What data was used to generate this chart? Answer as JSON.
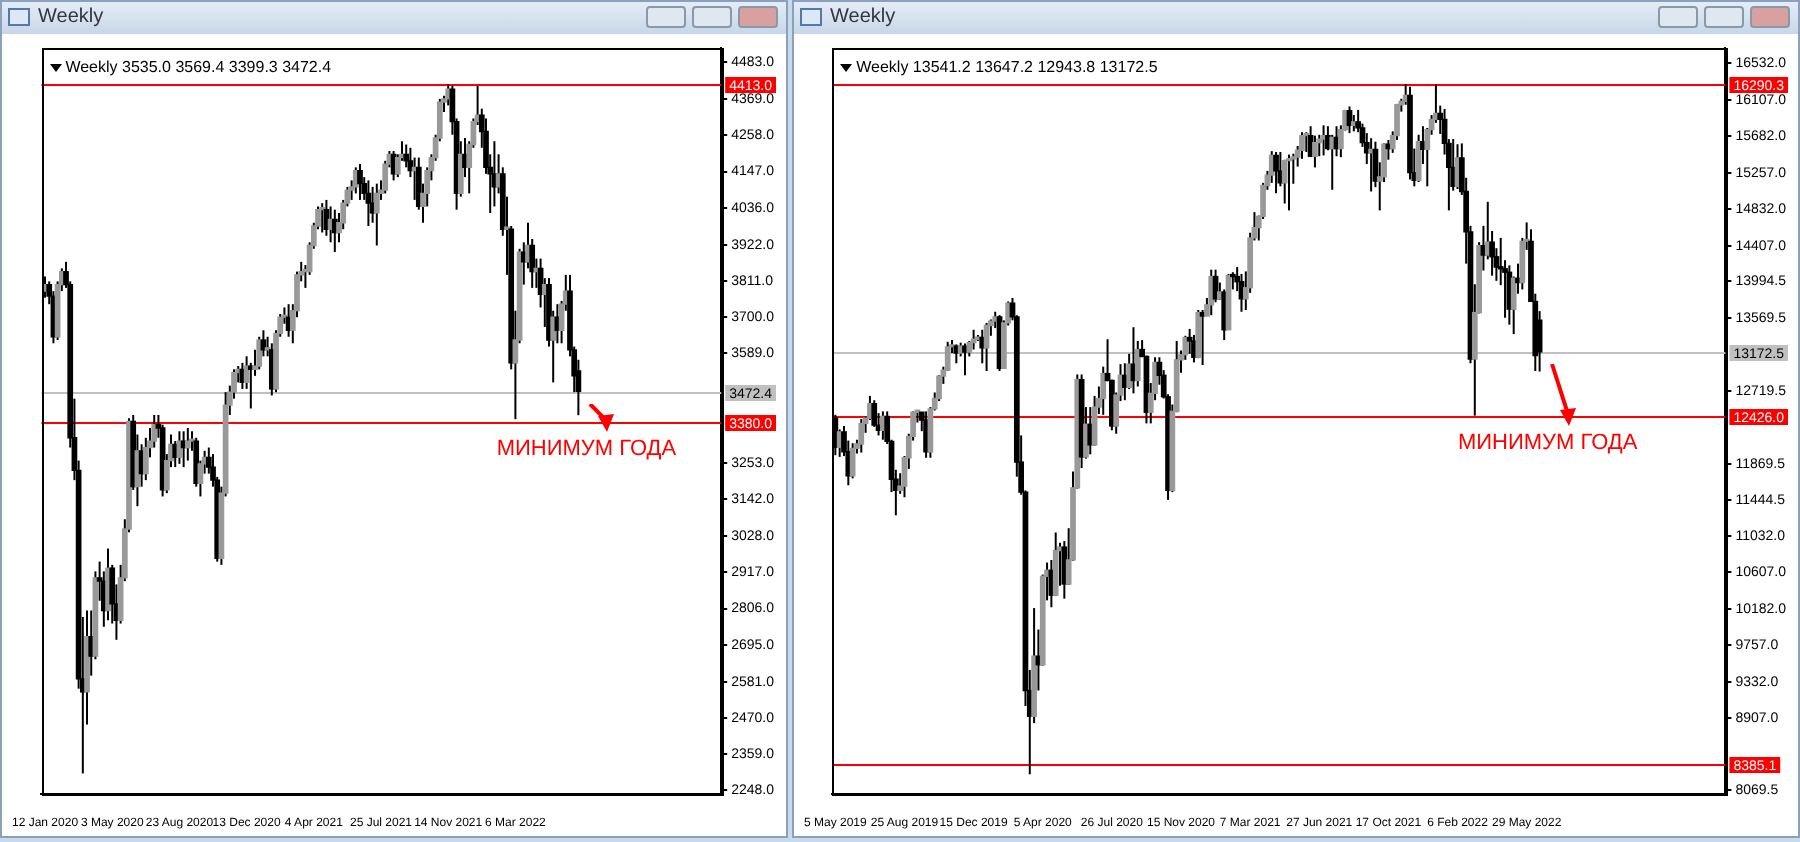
{
  "chart_data": [
    {
      "type": "candlestick",
      "title": "Weekly",
      "subtitle": "Weekly 3535.0 3569.4 3399.3 3472.4",
      "grid": false,
      "x": [
        "2020-01-12",
        "2020-01-19",
        "2020-01-26",
        "2020-02-02",
        "2020-02-09",
        "2020-02-16",
        "2020-02-23",
        "2020-03-01",
        "2020-03-08",
        "2020-03-15",
        "2020-03-22",
        "2020-03-29",
        "2020-04-05",
        "2020-04-12",
        "2020-04-19",
        "2020-04-26",
        "2020-05-03",
        "2020-05-10",
        "2020-05-17",
        "2020-05-24",
        "2020-05-31",
        "2020-06-07",
        "2020-06-14",
        "2020-06-21",
        "2020-06-28",
        "2020-07-05",
        "2020-07-12",
        "2020-07-19",
        "2020-07-26",
        "2020-08-02",
        "2020-08-09",
        "2020-08-16",
        "2020-08-23",
        "2020-08-30",
        "2020-09-06",
        "2020-09-13",
        "2020-09-20",
        "2020-09-27",
        "2020-10-04",
        "2020-10-11",
        "2020-10-18",
        "2020-10-25",
        "2020-11-01",
        "2020-11-08",
        "2020-11-15",
        "2020-11-22",
        "2020-11-29",
        "2020-12-06",
        "2020-12-13",
        "2020-12-20",
        "2020-12-27",
        "2021-01-03",
        "2021-01-10",
        "2021-01-17",
        "2021-01-24",
        "2021-01-31",
        "2021-02-07",
        "2021-02-14",
        "2021-02-21",
        "2021-02-28",
        "2021-03-07",
        "2021-03-14",
        "2021-03-21",
        "2021-03-28",
        "2021-04-04",
        "2021-04-11",
        "2021-04-18",
        "2021-04-25",
        "2021-05-02",
        "2021-05-09",
        "2021-05-16",
        "2021-05-23",
        "2021-05-30",
        "2021-06-06",
        "2021-06-13",
        "2021-06-20",
        "2021-06-27",
        "2021-07-04",
        "2021-07-11",
        "2021-07-18",
        "2021-07-25",
        "2021-08-01",
        "2021-08-08",
        "2021-08-15",
        "2021-08-22",
        "2021-08-29",
        "2021-09-05",
        "2021-09-12",
        "2021-09-19",
        "2021-09-26",
        "2021-10-03",
        "2021-10-10",
        "2021-10-17",
        "2021-10-24",
        "2021-10-31",
        "2021-11-07",
        "2021-11-14",
        "2021-11-21",
        "2021-11-28",
        "2021-12-05",
        "2021-12-12",
        "2021-12-19",
        "2021-12-26",
        "2022-01-02",
        "2022-01-09",
        "2022-01-16",
        "2022-01-23",
        "2022-01-30",
        "2022-02-06",
        "2022-02-13",
        "2022-02-20",
        "2022-02-27",
        "2022-03-06",
        "2022-03-13",
        "2022-03-20",
        "2022-03-27",
        "2022-04-03",
        "2022-04-10",
        "2022-04-17",
        "2022-04-24",
        "2022-05-01",
        "2022-05-08",
        "2022-05-15",
        "2022-05-22",
        "2022-05-29",
        "2022-06-05",
        "2022-06-12",
        "2022-06-19"
      ],
      "xlim": [
        "2020-01-06",
        "2023-02-12"
      ],
      "xticks": [
        {
          "value": "2020-01-12",
          "label": "12 Jan 2020"
        },
        {
          "value": "2020-05-03",
          "label": "3 May 2020"
        },
        {
          "value": "2020-08-23",
          "label": "23 Aug 2020"
        },
        {
          "value": "2020-12-13",
          "label": "13 Dec 2020"
        },
        {
          "value": "2021-04-04",
          "label": "4 Apr 2021"
        },
        {
          "value": "2021-07-25",
          "label": "25 Jul 2021"
        },
        {
          "value": "2021-11-14",
          "label": "14 Nov 2021"
        },
        {
          "value": "2022-03-06",
          "label": "6 Mar 2022"
        }
      ],
      "ohlc": [
        [
          3780,
          3825,
          3760,
          3800
        ],
        [
          3800,
          3810,
          3740,
          3765
        ],
        [
          3765,
          3780,
          3620,
          3640
        ],
        [
          3640,
          3810,
          3630,
          3800
        ],
        [
          3800,
          3850,
          3780,
          3840
        ],
        [
          3840,
          3870,
          3790,
          3800
        ],
        [
          3800,
          3810,
          3300,
          3330
        ],
        [
          3330,
          3450,
          3200,
          3230
        ],
        [
          3230,
          3260,
          2560,
          2590
        ],
        [
          2590,
          2780,
          2300,
          2550
        ],
        [
          2550,
          2800,
          2450,
          2720
        ],
        [
          2720,
          2800,
          2600,
          2660
        ],
        [
          2660,
          2920,
          2650,
          2900
        ],
        [
          2900,
          2950,
          2830,
          2890
        ],
        [
          2890,
          2920,
          2750,
          2800
        ],
        [
          2800,
          2990,
          2770,
          2930
        ],
        [
          2930,
          2940,
          2760,
          2820
        ],
        [
          2820,
          2880,
          2710,
          2770
        ],
        [
          2770,
          2940,
          2760,
          2900
        ],
        [
          2900,
          3080,
          2890,
          3050
        ],
        [
          3050,
          3390,
          3040,
          3380
        ],
        [
          3380,
          3400,
          3170,
          3180
        ],
        [
          3180,
          3340,
          3120,
          3290
        ],
        [
          3290,
          3310,
          3180,
          3220
        ],
        [
          3220,
          3330,
          3200,
          3300
        ],
        [
          3300,
          3360,
          3270,
          3320
        ],
        [
          3320,
          3400,
          3300,
          3370
        ],
        [
          3370,
          3400,
          3330,
          3360
        ],
        [
          3360,
          3370,
          3150,
          3170
        ],
        [
          3170,
          3280,
          3160,
          3260
        ],
        [
          3260,
          3340,
          3240,
          3310
        ],
        [
          3310,
          3320,
          3240,
          3270
        ],
        [
          3270,
          3350,
          3250,
          3320
        ],
        [
          3320,
          3350,
          3240,
          3300
        ],
        [
          3300,
          3360,
          3260,
          3320
        ],
        [
          3320,
          3350,
          3290,
          3320
        ],
        [
          3320,
          3330,
          3180,
          3190
        ],
        [
          3190,
          3260,
          3150,
          3250
        ],
        [
          3250,
          3290,
          3220,
          3270
        ],
        [
          3270,
          3300,
          3220,
          3240
        ],
        [
          3240,
          3280,
          3180,
          3200
        ],
        [
          3200,
          3210,
          2950,
          2960
        ],
        [
          2960,
          3180,
          2940,
          3160
        ],
        [
          3160,
          3470,
          3150,
          3430
        ],
        [
          3430,
          3490,
          3400,
          3470
        ],
        [
          3470,
          3540,
          3450,
          3530
        ],
        [
          3530,
          3550,
          3500,
          3540
        ],
        [
          3540,
          3560,
          3480,
          3500
        ],
        [
          3500,
          3580,
          3480,
          3550
        ],
        [
          3550,
          3560,
          3420,
          3540
        ],
        [
          3540,
          3600,
          3520,
          3550
        ],
        [
          3550,
          3640,
          3540,
          3630
        ],
        [
          3630,
          3660,
          3580,
          3600
        ],
        [
          3600,
          3640,
          3580,
          3600
        ],
        [
          3600,
          3620,
          3460,
          3480
        ],
        [
          3480,
          3660,
          3470,
          3650
        ],
        [
          3650,
          3710,
          3640,
          3700
        ],
        [
          3700,
          3730,
          3680,
          3700
        ],
        [
          3700,
          3740,
          3640,
          3660
        ],
        [
          3660,
          3740,
          3620,
          3720
        ],
        [
          3720,
          3840,
          3700,
          3830
        ],
        [
          3830,
          3870,
          3810,
          3840
        ],
        [
          3840,
          3860,
          3790,
          3840
        ],
        [
          3840,
          3930,
          3830,
          3920
        ],
        [
          3920,
          3990,
          3910,
          3980
        ],
        [
          3980,
          4040,
          3970,
          4030
        ],
        [
          4030,
          4050,
          3960,
          4030
        ],
        [
          4030,
          4060,
          3950,
          3970
        ],
        [
          3970,
          4040,
          3930,
          4000
        ],
        [
          4000,
          4030,
          3900,
          3960
        ],
        [
          3960,
          4020,
          3930,
          3990
        ],
        [
          3990,
          4060,
          3970,
          4050
        ],
        [
          4050,
          4100,
          4040,
          4090
        ],
        [
          4090,
          4120,
          4060,
          4100
        ],
        [
          4100,
          4160,
          4080,
          4150
        ],
        [
          4150,
          4170,
          4060,
          4110
        ],
        [
          4110,
          4130,
          4060,
          4080
        ],
        [
          4080,
          4120,
          3980,
          4050
        ],
        [
          4050,
          4100,
          3990,
          4020
        ],
        [
          4020,
          4110,
          3920,
          4080
        ],
        [
          4080,
          4120,
          4060,
          4090
        ],
        [
          4090,
          4180,
          4080,
          4170
        ],
        [
          4170,
          4210,
          4160,
          4200
        ],
        [
          4200,
          4210,
          4120,
          4140
        ],
        [
          4140,
          4200,
          4130,
          4190
        ],
        [
          4190,
          4240,
          4180,
          4200
        ],
        [
          4200,
          4230,
          4160,
          4180
        ],
        [
          4180,
          4220,
          4130,
          4150
        ],
        [
          4150,
          4190,
          4060,
          4160
        ],
        [
          4160,
          4190,
          4030,
          4040
        ],
        [
          4040,
          4110,
          3990,
          4080
        ],
        [
          4080,
          4160,
          4040,
          4150
        ],
        [
          4150,
          4200,
          4120,
          4190
        ],
        [
          4190,
          4260,
          4180,
          4250
        ],
        [
          4250,
          4370,
          4240,
          4360
        ],
        [
          4360,
          4380,
          4330,
          4370
        ],
        [
          4370,
          4415,
          4350,
          4400
        ],
        [
          4400,
          4410,
          4260,
          4300
        ],
        [
          4300,
          4310,
          4030,
          4080
        ],
        [
          4080,
          4240,
          4070,
          4200
        ],
        [
          4200,
          4250,
          4130,
          4160
        ],
        [
          4160,
          4240,
          4080,
          4230
        ],
        [
          4230,
          4310,
          4220,
          4300
        ],
        [
          4300,
          4410,
          4290,
          4320
        ],
        [
          4320,
          4340,
          4220,
          4270
        ],
        [
          4270,
          4310,
          4140,
          4160
        ],
        [
          4160,
          4200,
          4020,
          4140
        ],
        [
          4140,
          4240,
          4040,
          4100
        ],
        [
          4100,
          4200,
          4080,
          4140
        ],
        [
          4140,
          4160,
          3950,
          3970
        ],
        [
          3970,
          4070,
          3830,
          3970
        ],
        [
          3970,
          3980,
          3540,
          3560
        ],
        [
          3560,
          3720,
          3387,
          3630
        ],
        [
          3630,
          3910,
          3620,
          3900
        ],
        [
          3900,
          3930,
          3800,
          3870
        ],
        [
          3870,
          3990,
          3850,
          3920
        ],
        [
          3920,
          3940,
          3790,
          3840
        ],
        [
          3840,
          3880,
          3790,
          3850
        ],
        [
          3850,
          3880,
          3730,
          3770
        ],
        [
          3770,
          3820,
          3670,
          3800
        ],
        [
          3800,
          3820,
          3610,
          3630
        ],
        [
          3630,
          3720,
          3500,
          3700
        ],
        [
          3700,
          3740,
          3620,
          3660
        ],
        [
          3660,
          3750,
          3620,
          3740
        ],
        [
          3740,
          3830,
          3720,
          3780
        ],
        [
          3780,
          3830,
          3580,
          3600
        ],
        [
          3600,
          3610,
          3470,
          3520
        ],
        [
          3535.0,
          3569.4,
          3399.3,
          3472.4
        ]
      ],
      "ylim": [
        2238,
        4525
      ],
      "yticks": [
        {
          "value": 4483,
          "label": "4483.0"
        },
        {
          "value": 4369,
          "label": "4369.0"
        },
        {
          "value": 4258,
          "label": "4258.0"
        },
        {
          "value": 4147,
          "label": "4147.0"
        },
        {
          "value": 4036,
          "label": "4036.0"
        },
        {
          "value": 3922,
          "label": "3922.0"
        },
        {
          "value": 3811,
          "label": "3811.0"
        },
        {
          "value": 3700,
          "label": "3700.0"
        },
        {
          "value": 3589,
          "label": "3589.0"
        },
        {
          "value": 3253,
          "label": "3253.0"
        },
        {
          "value": 3142,
          "label": "3142.0"
        },
        {
          "value": 3028,
          "label": "3028.0"
        },
        {
          "value": 2917,
          "label": "2917.0"
        },
        {
          "value": 2806,
          "label": "2806.0"
        },
        {
          "value": 2695,
          "label": "2695.0"
        },
        {
          "value": 2581,
          "label": "2581.0"
        },
        {
          "value": 2470,
          "label": "2470.0"
        },
        {
          "value": 2359,
          "label": "2359.0"
        },
        {
          "value": 2248,
          "label": "2248.0"
        }
      ],
      "ref_lines": [
        {
          "axis": "y",
          "value": 4413.0,
          "label": "4413.0",
          "color": "#ff0000"
        },
        {
          "axis": "y",
          "value": 3380.0,
          "label": "3380.0",
          "color": "#ff0000"
        },
        {
          "axis": "y",
          "value": 3472.4,
          "label": "3472.4",
          "color": "#c0c0c0"
        }
      ],
      "annotations": [
        {
          "text": "МИНИМУМ ГОДА",
          "y": 3380.0
        }
      ]
    },
    {
      "type": "candlestick",
      "title": "Weekly",
      "subtitle": "Weekly 13541.2 13647.2 12943.8 13172.5",
      "grid": false,
      "x": [
        "2019-05-05",
        "2019-05-12",
        "2019-05-19",
        "2019-05-26",
        "2019-06-02",
        "2019-06-09",
        "2019-06-16",
        "2019-06-23",
        "2019-06-30",
        "2019-07-07",
        "2019-07-14",
        "2019-07-21",
        "2019-07-28",
        "2019-08-04",
        "2019-08-11",
        "2019-08-18",
        "2019-08-25",
        "2019-09-01",
        "2019-09-08",
        "2019-09-15",
        "2019-09-22",
        "2019-09-29",
        "2019-10-06",
        "2019-10-13",
        "2019-10-20",
        "2019-10-27",
        "2019-11-03",
        "2019-11-10",
        "2019-11-17",
        "2019-11-24",
        "2019-12-01",
        "2019-12-08",
        "2019-12-15",
        "2019-12-22",
        "2019-12-29",
        "2020-01-05",
        "2020-01-12",
        "2020-01-19",
        "2020-01-26",
        "2020-02-02",
        "2020-02-09",
        "2020-02-16",
        "2020-02-23",
        "2020-03-01",
        "2020-03-08",
        "2020-03-15",
        "2020-03-22",
        "2020-03-29",
        "2020-04-05",
        "2020-04-12",
        "2020-04-19",
        "2020-04-26",
        "2020-05-03",
        "2020-05-10",
        "2020-05-17",
        "2020-05-24",
        "2020-05-31",
        "2020-06-07",
        "2020-06-14",
        "2020-06-21",
        "2020-06-28",
        "2020-07-05",
        "2020-07-12",
        "2020-07-19",
        "2020-07-26",
        "2020-08-02",
        "2020-08-09",
        "2020-08-16",
        "2020-08-23",
        "2020-08-30",
        "2020-09-06",
        "2020-09-13",
        "2020-09-20",
        "2020-09-27",
        "2020-10-04",
        "2020-10-11",
        "2020-10-18",
        "2020-10-25",
        "2020-11-01",
        "2020-11-08",
        "2020-11-15",
        "2020-11-22",
        "2020-11-29",
        "2020-12-06",
        "2020-12-13",
        "2020-12-20",
        "2020-12-27",
        "2021-01-03",
        "2021-01-10",
        "2021-01-17",
        "2021-01-24",
        "2021-01-31",
        "2021-02-07",
        "2021-02-14",
        "2021-02-21",
        "2021-02-28",
        "2021-03-07",
        "2021-03-14",
        "2021-03-21",
        "2021-03-28",
        "2021-04-04",
        "2021-04-11",
        "2021-04-18",
        "2021-04-25",
        "2021-05-02",
        "2021-05-09",
        "2021-05-16",
        "2021-05-23",
        "2021-05-30",
        "2021-06-06",
        "2021-06-13",
        "2021-06-20",
        "2021-06-27",
        "2021-07-04",
        "2021-07-11",
        "2021-07-18",
        "2021-07-25",
        "2021-08-01",
        "2021-08-08",
        "2021-08-15",
        "2021-08-22",
        "2021-08-29",
        "2021-09-05",
        "2021-09-12",
        "2021-09-19",
        "2021-09-26",
        "2021-10-03",
        "2021-10-10",
        "2021-10-17",
        "2021-10-24",
        "2021-10-31",
        "2021-11-07",
        "2021-11-14",
        "2021-11-21",
        "2021-11-28",
        "2021-12-05",
        "2021-12-12",
        "2021-12-19",
        "2021-12-26",
        "2022-01-02",
        "2022-01-09",
        "2022-01-16",
        "2022-01-23",
        "2022-01-30",
        "2022-02-06",
        "2022-02-13",
        "2022-02-20",
        "2022-02-27",
        "2022-03-06",
        "2022-03-13",
        "2022-03-20",
        "2022-03-27",
        "2022-04-03",
        "2022-04-10",
        "2022-04-17",
        "2022-04-24",
        "2022-05-01",
        "2022-05-08",
        "2022-05-15",
        "2022-05-22",
        "2022-05-29",
        "2022-06-05",
        "2022-06-12",
        "2022-06-19"
      ],
      "xlim": [
        "2019-04-30",
        "2023-04-16"
      ],
      "xticks": [
        {
          "value": "2019-05-05",
          "label": "5 May 2019"
        },
        {
          "value": "2019-08-25",
          "label": "25 Aug 2019"
        },
        {
          "value": "2019-12-15",
          "label": "15 Dec 2019"
        },
        {
          "value": "2020-04-05",
          "label": "5 Apr 2020"
        },
        {
          "value": "2020-07-26",
          "label": "26 Jul 2020"
        },
        {
          "value": "2020-11-15",
          "label": "15 Nov 2020"
        },
        {
          "value": "2021-03-07",
          "label": "7 Mar 2021"
        },
        {
          "value": "2021-06-27",
          "label": "27 Jun 2021"
        },
        {
          "value": "2021-10-17",
          "label": "17 Oct 2021"
        },
        {
          "value": "2022-02-06",
          "label": "6 Feb 2022"
        },
        {
          "value": "2022-05-29",
          "label": "29 May 2022"
        }
      ],
      "ohlc": [
        [
          12400,
          12440,
          11970,
          12060
        ],
        [
          12060,
          12270,
          11950,
          12240
        ],
        [
          12240,
          12310,
          11960,
          12010
        ],
        [
          12010,
          12140,
          11620,
          11730
        ],
        [
          11730,
          12110,
          11700,
          12050
        ],
        [
          12050,
          12150,
          11990,
          12100
        ],
        [
          12100,
          12390,
          12000,
          12340
        ],
        [
          12340,
          12420,
          12230,
          12400
        ],
        [
          12400,
          12660,
          12380,
          12570
        ],
        [
          12570,
          12610,
          12300,
          12320
        ],
        [
          12320,
          12460,
          12200,
          12260
        ],
        [
          12260,
          12480,
          12150,
          12420
        ],
        [
          12420,
          12480,
          12100,
          12130
        ],
        [
          12130,
          12150,
          11540,
          11690
        ],
        [
          11690,
          11800,
          11270,
          11560
        ],
        [
          11560,
          11760,
          11520,
          11610
        ],
        [
          11610,
          11960,
          11480,
          11940
        ],
        [
          11940,
          12220,
          11810,
          12190
        ],
        [
          12190,
          12480,
          12140,
          12470
        ],
        [
          12470,
          12490,
          12350,
          12470
        ],
        [
          12470,
          12470,
          12250,
          12380
        ],
        [
          12380,
          12480,
          11940,
          12010
        ],
        [
          12010,
          12530,
          11940,
          12510
        ],
        [
          12510,
          12700,
          12490,
          12630
        ],
        [
          12630,
          12900,
          12600,
          12890
        ],
        [
          12890,
          13000,
          12800,
          12960
        ],
        [
          12960,
          13290,
          12950,
          13230
        ],
        [
          13230,
          13310,
          13160,
          13240
        ],
        [
          13240,
          13260,
          13040,
          13160
        ],
        [
          13160,
          13280,
          13120,
          13240
        ],
        [
          13240,
          13270,
          12900,
          13170
        ],
        [
          13170,
          13300,
          13120,
          13280
        ],
        [
          13280,
          13430,
          13200,
          13320
        ],
        [
          13320,
          13370,
          13300,
          13340
        ],
        [
          13340,
          13430,
          13040,
          13220
        ],
        [
          13220,
          13510,
          12950,
          13480
        ],
        [
          13480,
          13550,
          13360,
          13530
        ],
        [
          13530,
          13640,
          13450,
          13580
        ],
        [
          13580,
          13600,
          12950,
          12980
        ],
        [
          12980,
          13540,
          12980,
          13510
        ],
        [
          13510,
          13760,
          13480,
          13740
        ],
        [
          13740,
          13800,
          13540,
          13580
        ],
        [
          13580,
          13600,
          11720,
          11890
        ],
        [
          11890,
          12200,
          11510,
          11540
        ],
        [
          11540,
          11560,
          9050,
          9230
        ],
        [
          9230,
          9470,
          8255,
          8930
        ],
        [
          8930,
          10190,
          8850,
          9630
        ],
        [
          9630,
          9940,
          9230,
          9530
        ],
        [
          9530,
          10580,
          9520,
          10560
        ],
        [
          10560,
          10720,
          10280,
          10630
        ],
        [
          10630,
          10750,
          10200,
          10340
        ],
        [
          10340,
          11070,
          10330,
          10860
        ],
        [
          10860,
          10950,
          10450,
          10900
        ],
        [
          10900,
          10970,
          10300,
          10470
        ],
        [
          10470,
          11120,
          10460,
          10750
        ],
        [
          10750,
          11780,
          10740,
          11590
        ],
        [
          11590,
          12910,
          11580,
          12850
        ],
        [
          12850,
          12910,
          11820,
          11950
        ],
        [
          11950,
          12530,
          11930,
          12330
        ],
        [
          12330,
          12530,
          11980,
          12090
        ],
        [
          12090,
          12660,
          12080,
          12530
        ],
        [
          12530,
          12770,
          12450,
          12630
        ],
        [
          12630,
          13000,
          12440,
          12920
        ],
        [
          12920,
          13320,
          12830,
          12840
        ],
        [
          12840,
          12850,
          12260,
          12310
        ],
        [
          12310,
          12700,
          12220,
          12670
        ],
        [
          12670,
          13030,
          12600,
          12900
        ],
        [
          12900,
          13040,
          12610,
          12760
        ],
        [
          12760,
          13150,
          12740,
          13030
        ],
        [
          13030,
          13460,
          12690,
          12840
        ],
        [
          12840,
          13300,
          12770,
          13200
        ],
        [
          13200,
          13310,
          13110,
          13120
        ],
        [
          13120,
          13130,
          12340,
          12470
        ],
        [
          12470,
          12810,
          12340,
          12690
        ],
        [
          12690,
          13110,
          12610,
          13050
        ],
        [
          13050,
          13110,
          12790,
          12900
        ],
        [
          12900,
          12960,
          12630,
          12650
        ],
        [
          12650,
          12680,
          11450,
          11560
        ],
        [
          11560,
          12560,
          11540,
          12480
        ],
        [
          12480,
          13300,
          12470,
          13080
        ],
        [
          13080,
          13190,
          12930,
          13140
        ],
        [
          13140,
          13360,
          13080,
          13340
        ],
        [
          13340,
          13440,
          13150,
          13300
        ],
        [
          13300,
          13370,
          13050,
          13110
        ],
        [
          13110,
          13660,
          13100,
          13630
        ],
        [
          13630,
          13660,
          13020,
          13590
        ],
        [
          13590,
          13800,
          13590,
          13720
        ],
        [
          13720,
          14130,
          13600,
          14050
        ],
        [
          14050,
          14130,
          13750,
          13790
        ],
        [
          13790,
          13980,
          13780,
          13870
        ],
        [
          13870,
          13900,
          13310,
          13430
        ],
        [
          13430,
          14080,
          13430,
          14060
        ],
        [
          14060,
          14100,
          13900,
          14050
        ],
        [
          14050,
          14160,
          13880,
          13990
        ],
        [
          13990,
          14080,
          13640,
          13790
        ],
        [
          13790,
          14110,
          13660,
          13920
        ],
        [
          13920,
          14560,
          13860,
          14500
        ],
        [
          14500,
          14800,
          14470,
          14620
        ],
        [
          14620,
          14760,
          14470,
          14750
        ],
        [
          14750,
          15140,
          14720,
          15110
        ],
        [
          15110,
          15280,
          15060,
          15230
        ],
        [
          15230,
          15510,
          15140,
          15460
        ],
        [
          15460,
          15500,
          15020,
          15280
        ],
        [
          15280,
          15500,
          15100,
          15140
        ],
        [
          15140,
          15410,
          14900,
          15400
        ],
        [
          15400,
          15470,
          14820,
          15420
        ],
        [
          15420,
          15480,
          15130,
          15440
        ],
        [
          15440,
          15570,
          15330,
          15520
        ],
        [
          15520,
          15730,
          15420,
          15690
        ],
        [
          15690,
          15730,
          15500,
          15690
        ],
        [
          15690,
          15800,
          15440,
          15450
        ],
        [
          15450,
          15690,
          15320,
          15610
        ],
        [
          15610,
          15700,
          15450,
          15650
        ],
        [
          15650,
          15810,
          15460,
          15690
        ],
        [
          15690,
          15800,
          15520,
          15540
        ],
        [
          15540,
          15700,
          15060,
          15670
        ],
        [
          15670,
          15800,
          15450,
          15540
        ],
        [
          15540,
          15810,
          15440,
          15760
        ],
        [
          15760,
          15990,
          15750,
          15980
        ],
        [
          15980,
          16030,
          15720,
          15810
        ],
        [
          15810,
          15930,
          15740,
          15850
        ],
        [
          15850,
          15990,
          15730,
          15780
        ],
        [
          15780,
          15830,
          15560,
          15610
        ],
        [
          15610,
          15720,
          15360,
          15490
        ],
        [
          15490,
          15660,
          15040,
          15530
        ],
        [
          15530,
          15620,
          15090,
          15160
        ],
        [
          15160,
          15380,
          14820,
          15210
        ],
        [
          15210,
          15600,
          15150,
          15590
        ],
        [
          15590,
          15640,
          15410,
          15540
        ],
        [
          15540,
          15740,
          15490,
          15690
        ],
        [
          15690,
          16060,
          15640,
          16050
        ],
        [
          16050,
          16120,
          15970,
          16090
        ],
        [
          16090,
          16290,
          16050,
          16160
        ],
        [
          16160,
          16260,
          15180,
          15260
        ],
        [
          15260,
          15540,
          15100,
          15170
        ],
        [
          15170,
          15700,
          15150,
          15620
        ],
        [
          15620,
          15800,
          15360,
          15530
        ],
        [
          15530,
          15780,
          15100,
          15760
        ],
        [
          15760,
          15930,
          15700,
          15880
        ],
        [
          15880,
          16290,
          15840,
          15950
        ],
        [
          15950,
          16040,
          15710,
          15880
        ],
        [
          15880,
          16000,
          15470,
          15600
        ],
        [
          15600,
          15650,
          14820,
          15320
        ],
        [
          15320,
          15650,
          15050,
          15100
        ],
        [
          15100,
          15590,
          15070,
          15430
        ],
        [
          15430,
          15600,
          15000,
          15040
        ],
        [
          15040,
          15200,
          14200,
          14570
        ],
        [
          14570,
          14640,
          13040,
          13090
        ],
        [
          13090,
          13960,
          12430,
          13630
        ],
        [
          13630,
          14450,
          13620,
          14410
        ],
        [
          14410,
          14640,
          14120,
          14300
        ],
        [
          14300,
          14920,
          14250,
          14450
        ],
        [
          14450,
          14580,
          14060,
          14280
        ],
        [
          14280,
          14380,
          14000,
          14160
        ],
        [
          14160,
          14500,
          13950,
          14140
        ],
        [
          14140,
          14240,
          13570,
          14100
        ],
        [
          14100,
          14180,
          13490,
          13670
        ],
        [
          13670,
          14050,
          13380,
          14030
        ],
        [
          14030,
          14200,
          13850,
          13980
        ],
        [
          13980,
          14500,
          13900,
          14460
        ],
        [
          14460,
          14680,
          14360,
          14460
        ],
        [
          14460,
          14600,
          13760,
          13760
        ],
        [
          13760,
          13850,
          12950,
          13130
        ],
        [
          13541.2,
          13647.2,
          12943.8,
          13172.5
        ]
      ],
      "ylim": [
        8030,
        16706
      ],
      "yticks": [
        {
          "value": 16532,
          "label": "16532.0"
        },
        {
          "value": 16107,
          "label": "16107.0"
        },
        {
          "value": 15682,
          "label": "15682.0"
        },
        {
          "value": 15257,
          "label": "15257.0"
        },
        {
          "value": 14832,
          "label": "14832.0"
        },
        {
          "value": 14407,
          "label": "14407.0"
        },
        {
          "value": 13994.5,
          "label": "13994.5"
        },
        {
          "value": 13569.5,
          "label": "13569.5"
        },
        {
          "value": 12719.5,
          "label": "12719.5"
        },
        {
          "value": 11869.5,
          "label": "11869.5"
        },
        {
          "value": 11444.5,
          "label": "11444.5"
        },
        {
          "value": 11032,
          "label": "11032.0"
        },
        {
          "value": 10607,
          "label": "10607.0"
        },
        {
          "value": 10182,
          "label": "10182.0"
        },
        {
          "value": 9757,
          "label": "9757.0"
        },
        {
          "value": 9332,
          "label": "9332.0"
        },
        {
          "value": 8907,
          "label": "8907.0"
        },
        {
          "value": 8069.5,
          "label": "8069.5"
        }
      ],
      "ref_lines": [
        {
          "axis": "y",
          "value": 16290.3,
          "label": "16290.3",
          "color": "#ff0000"
        },
        {
          "axis": "y",
          "value": 12426.0,
          "label": "12426.0",
          "color": "#ff0000"
        },
        {
          "axis": "y",
          "value": 8385.1,
          "label": "8385.1",
          "color": "#ff0000"
        },
        {
          "axis": "y",
          "value": 13172.5,
          "label": "13172.5",
          "color": "#c0c0c0"
        }
      ],
      "annotations": [
        {
          "text": "МИНИМУМ ГОДА",
          "y": 12426.0
        }
      ]
    }
  ]
}
